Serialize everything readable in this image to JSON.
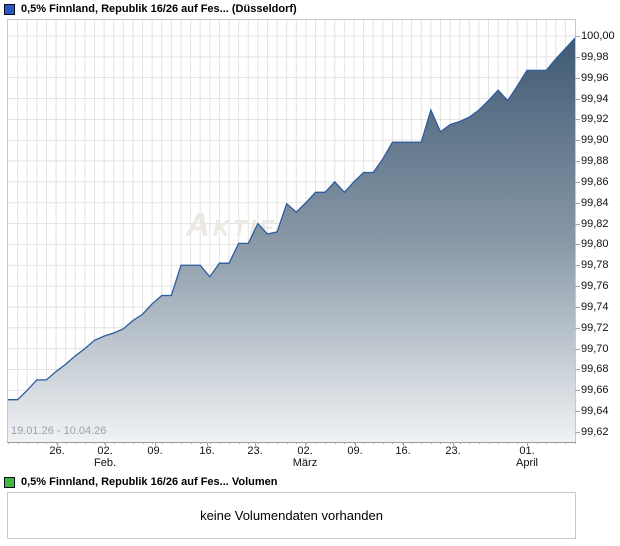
{
  "price_panel": {
    "legend": {
      "label": "0,5% Finnland, Republik 16/26 auf Fes... (Düsseldorf)",
      "marker_color": "#2b59c3",
      "marker_border": "#0a0f1e"
    },
    "date_range": "19.01.26 - 10.04.26",
    "watermark": "Aktien",
    "y_axis_labels": [
      "100,00",
      "99,98",
      "99,96",
      "99,94",
      "99,92",
      "99,90",
      "99,88",
      "99,86",
      "99,84",
      "99,82",
      "99,80",
      "99,78",
      "99,76",
      "99,74",
      "99,72",
      "99,70",
      "99,68",
      "99,66",
      "99,64",
      "99,62"
    ]
  },
  "volume_panel": {
    "legend": {
      "label": "0,5% Finnland, Republik 16/26 auf Fes... Volumen",
      "marker_color": "#3eb83e",
      "marker_border": "#0a0f1e"
    },
    "message": "keine Volumendaten vorhanden"
  },
  "chart_data": {
    "type": "area",
    "title": "0,5% Finnland, Republik 16/26 auf Fes... (Düsseldorf)",
    "x_range": [
      "19.01.26",
      "10.04.26"
    ],
    "ylim": [
      99.62,
      100.0
    ],
    "y_tick_step": 0.02,
    "grid": true,
    "legend_position": "top-left",
    "y_axis_side": "right",
    "line_color": "#2e5c9f",
    "fill_gradient": [
      "#3f5a74",
      "#8898a7",
      "#f0f2f4"
    ],
    "grid_color": "#e3e3e3",
    "x_ticks": [
      {
        "label": "26.",
        "month": "",
        "pos": 0.0864
      },
      {
        "label": "02.",
        "month": "Feb.",
        "pos": 0.1711
      },
      {
        "label": "09.",
        "month": "",
        "pos": 0.2593
      },
      {
        "label": "16.",
        "month": "",
        "pos": 0.351
      },
      {
        "label": "23.",
        "month": "",
        "pos": 0.4356
      },
      {
        "label": "02.",
        "month": "März",
        "pos": 0.5238
      },
      {
        "label": "09.",
        "month": "",
        "pos": 0.612
      },
      {
        "label": "16.",
        "month": "",
        "pos": 0.6967
      },
      {
        "label": "23.",
        "month": "",
        "pos": 0.7848
      },
      {
        "label": "01.",
        "month": "April",
        "pos": 0.9153
      }
    ],
    "values": [
      99.651,
      99.651,
      99.66,
      99.67,
      99.67,
      99.678,
      99.685,
      99.693,
      99.7,
      99.708,
      99.712,
      99.715,
      99.719,
      99.727,
      99.733,
      99.743,
      99.751,
      99.751,
      99.78,
      99.78,
      99.78,
      99.769,
      99.782,
      99.782,
      99.801,
      99.801,
      99.82,
      99.81,
      99.812,
      99.839,
      99.831,
      99.84,
      99.85,
      99.85,
      99.86,
      99.85,
      99.86,
      99.869,
      99.869,
      99.882,
      99.898,
      99.898,
      99.898,
      99.898,
      99.929,
      99.908,
      99.915,
      99.918,
      99.922,
      99.929,
      99.938,
      99.948,
      99.938,
      99.952,
      99.967,
      99.967,
      99.967,
      99.978,
      99.988,
      99.998
    ]
  }
}
